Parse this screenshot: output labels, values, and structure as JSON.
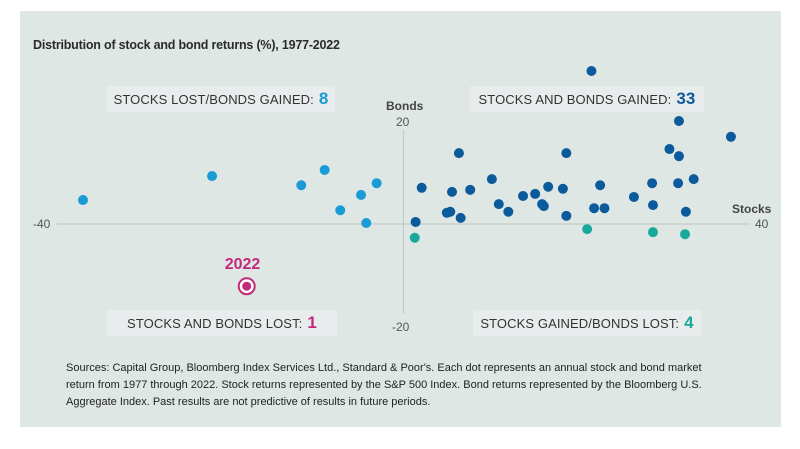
{
  "chart_data": {
    "type": "scatter",
    "title": "Distribution of stock and bond returns (%), 1977-2022",
    "xlabel": "Stocks",
    "ylabel": "Bonds",
    "xlim": [
      -40,
      40
    ],
    "ylim": [
      -20,
      20
    ],
    "x_ticks": [
      "-40",
      "40"
    ],
    "y_ticks": [
      "20",
      "-20"
    ],
    "grid": false,
    "quadrants": {
      "top_left": {
        "label": "STOCKS LOST/BONDS GAINED:",
        "count": "8",
        "color": "#1a9ad6"
      },
      "top_right": {
        "label": "STOCKS AND BONDS GAINED:",
        "count": "33",
        "color": "#0b5a9c"
      },
      "bottom_left": {
        "label": "STOCKS AND BONDS LOST:",
        "count": "1",
        "color": "#c2297a"
      },
      "bottom_right": {
        "label": "STOCKS GAINED/BONDS LOST:",
        "count": "4",
        "color": "#1aa89c"
      }
    },
    "series": [
      {
        "name": "Stocks lost/bonds gained",
        "color": "#1a9ad6",
        "points": [
          [
            -37.0,
            4.7
          ],
          [
            -22.1,
            9.4
          ],
          [
            -11.8,
            7.6
          ],
          [
            -9.1,
            10.6
          ],
          [
            -3.1,
            8.0
          ],
          [
            -4.9,
            5.7
          ],
          [
            -7.3,
            2.7
          ],
          [
            -4.3,
            0.2
          ]
        ]
      },
      {
        "name": "Stocks and bonds gained",
        "color": "#0b5a9c",
        "points": [
          [
            21.7,
            30.0
          ],
          [
            31.8,
            20.2
          ],
          [
            37.8,
            17.1
          ],
          [
            30.7,
            14.7
          ],
          [
            31.8,
            13.3
          ],
          [
            6.4,
            13.9
          ],
          [
            18.8,
            13.9
          ],
          [
            2.1,
            7.1
          ],
          [
            5.6,
            6.3
          ],
          [
            7.7,
            6.7
          ],
          [
            10.2,
            8.8
          ],
          [
            5.0,
            2.2
          ],
          [
            5.4,
            2.4
          ],
          [
            6.6,
            1.2
          ],
          [
            11.0,
            3.9
          ],
          [
            12.1,
            2.4
          ],
          [
            13.8,
            5.5
          ],
          [
            15.2,
            5.9
          ],
          [
            16.7,
            7.3
          ],
          [
            18.4,
            6.9
          ],
          [
            16.0,
            3.9
          ],
          [
            16.2,
            3.5
          ],
          [
            18.8,
            1.6
          ],
          [
            22.0,
            3.1
          ],
          [
            23.2,
            3.1
          ],
          [
            22.7,
            7.6
          ],
          [
            26.6,
            5.3
          ],
          [
            28.7,
            8.0
          ],
          [
            28.8,
            3.7
          ],
          [
            31.7,
            8.0
          ],
          [
            33.5,
            8.8
          ],
          [
            32.6,
            2.4
          ],
          [
            1.4,
            0.4
          ]
        ]
      },
      {
        "name": "Stocks gained/bonds lost",
        "color": "#1aa89c",
        "points": [
          [
            1.3,
            -2.7
          ],
          [
            21.2,
            -1.0
          ],
          [
            28.8,
            -1.6
          ],
          [
            32.5,
            -2.0
          ]
        ]
      },
      {
        "name": "Stocks and bonds lost",
        "color": "#c2297a",
        "points": [
          [
            -18.1,
            -12.2
          ]
        ],
        "annotation": "2022"
      }
    ]
  },
  "footnote": "Sources: Capital Group, Bloomberg Index Services Ltd., Standard & Poor's. Each dot represents an annual stock and bond market return from 1977 through 2022. Stock returns represented by the S&P 500 Index. Bond returns represented by the Bloomberg U.S. Aggregate Index. Past results are not predictive of results in future periods."
}
